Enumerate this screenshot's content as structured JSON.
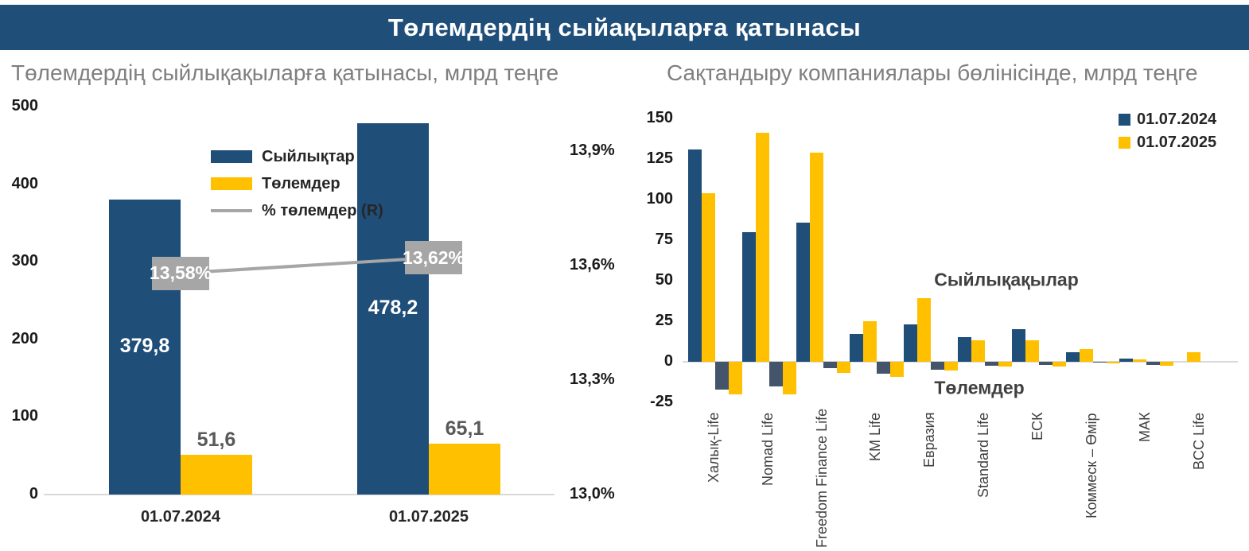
{
  "header": {
    "title": "Төлемдердің сыйақыларға қатынасы"
  },
  "colors": {
    "header_bg": "#1F4E79",
    "navy": "#1F4E79",
    "yellow": "#FFC000",
    "navy_muted": "#44546A",
    "gray_line": "#A6A6A6",
    "label_box_bg": "#A6A6A6",
    "title_gray": "#7F7F7F",
    "axis_text": "#1A1A1A",
    "axis_line": "#D9D9D9",
    "category_text": "#262626",
    "annotation_text": "#404040",
    "yellow_value_text": "#595959"
  },
  "chart_data": [
    {
      "id": "payments-to-premiums-ratio",
      "type": "bar",
      "title": "Төлемдердің сыйлықақыларға қатынасы, млрд теңге",
      "categories": [
        "01.07.2024",
        "01.07.2025"
      ],
      "series": [
        {
          "name": "Сыйлықтар",
          "kind": "bar",
          "axis": "left",
          "color": "#1F4E79",
          "values": [
            379.8,
            478.2
          ],
          "value_labels": [
            "379,8",
            "478,2"
          ]
        },
        {
          "name": "Төлемдер",
          "kind": "bar",
          "axis": "left",
          "color": "#FFC000",
          "values": [
            51.6,
            65.1
          ],
          "value_labels": [
            "51,6",
            "65,1"
          ]
        },
        {
          "name": "% төлемдер (R)",
          "kind": "line",
          "axis": "right",
          "color": "#A6A6A6",
          "values": [
            13.58,
            13.62
          ],
          "value_labels": [
            "13,58%",
            "13,62%"
          ]
        }
      ],
      "left_axis": {
        "min": 0,
        "max": 500,
        "ticks": [
          500,
          400,
          300,
          200,
          100,
          0
        ]
      },
      "right_axis": {
        "min": 13.0,
        "max": 13.9,
        "ticks": [
          {
            "value": 13.9,
            "label": "13,9%"
          },
          {
            "value": 13.6,
            "label": "13,6%"
          },
          {
            "value": 13.3,
            "label": "13,3%"
          },
          {
            "value": 13.0,
            "label": "13,0%"
          }
        ]
      },
      "legend": [
        {
          "label": "Сыйлықтар",
          "swatch": "bar",
          "color": "#1F4E79"
        },
        {
          "label": "Төлемдер",
          "swatch": "bar",
          "color": "#FFC000"
        },
        {
          "label": "% төлемдер (R)",
          "swatch": "line",
          "color": "#A6A6A6"
        }
      ],
      "grid": false,
      "legend_position": "inside-top-center"
    },
    {
      "id": "by-insurance-company",
      "type": "bar",
      "title": "Сақтандыру компаниялары бөлінісінде, млрд теңге",
      "categories": [
        "Халық-Life",
        "Nomad Life",
        "Freedom Finance Life",
        "KM Life",
        "Евразия",
        "Standard Life",
        "ЕСК",
        "Коммеск – Өмір",
        "МАК",
        "BCC Life"
      ],
      "series": [
        {
          "name": "Сыйлықақылар 01.07.2024",
          "kind": "premiums-2024",
          "color": "#1F4E79",
          "values": [
            131,
            80,
            86,
            17,
            23,
            15,
            20,
            6,
            2,
            0
          ]
        },
        {
          "name": "Сыйлықақылар 01.07.2025",
          "kind": "premiums-2025",
          "color": "#FFC000",
          "values": [
            104,
            141,
            129,
            25,
            39,
            13,
            13,
            8,
            1.5,
            6
          ]
        },
        {
          "name": "Төлемдер 01.07.2024",
          "kind": "payments-2024",
          "color": "#44546A",
          "values": [
            -17,
            -15,
            -4,
            -7.5,
            -5,
            -2.5,
            -2,
            -0.5,
            -2,
            0
          ]
        },
        {
          "name": "Төлемдер 01.07.2025",
          "kind": "payments-2025",
          "color": "#FFC000",
          "values": [
            -20,
            -20,
            -7,
            -9.5,
            -5.5,
            -3,
            -3,
            -1,
            -2.5,
            0
          ]
        }
      ],
      "y_axis": {
        "min": -25,
        "max": 150,
        "ticks": [
          150,
          125,
          100,
          75,
          50,
          25,
          0,
          -25
        ]
      },
      "legend": [
        {
          "label": "01.07.2024",
          "color": "#1F4E79"
        },
        {
          "label": "01.07.2025",
          "color": "#FFC000"
        }
      ],
      "annotations": [
        {
          "text": "Сыйлықақылар"
        },
        {
          "text": "Төлемдер"
        }
      ],
      "grid": false,
      "legend_position": "top-right"
    }
  ]
}
